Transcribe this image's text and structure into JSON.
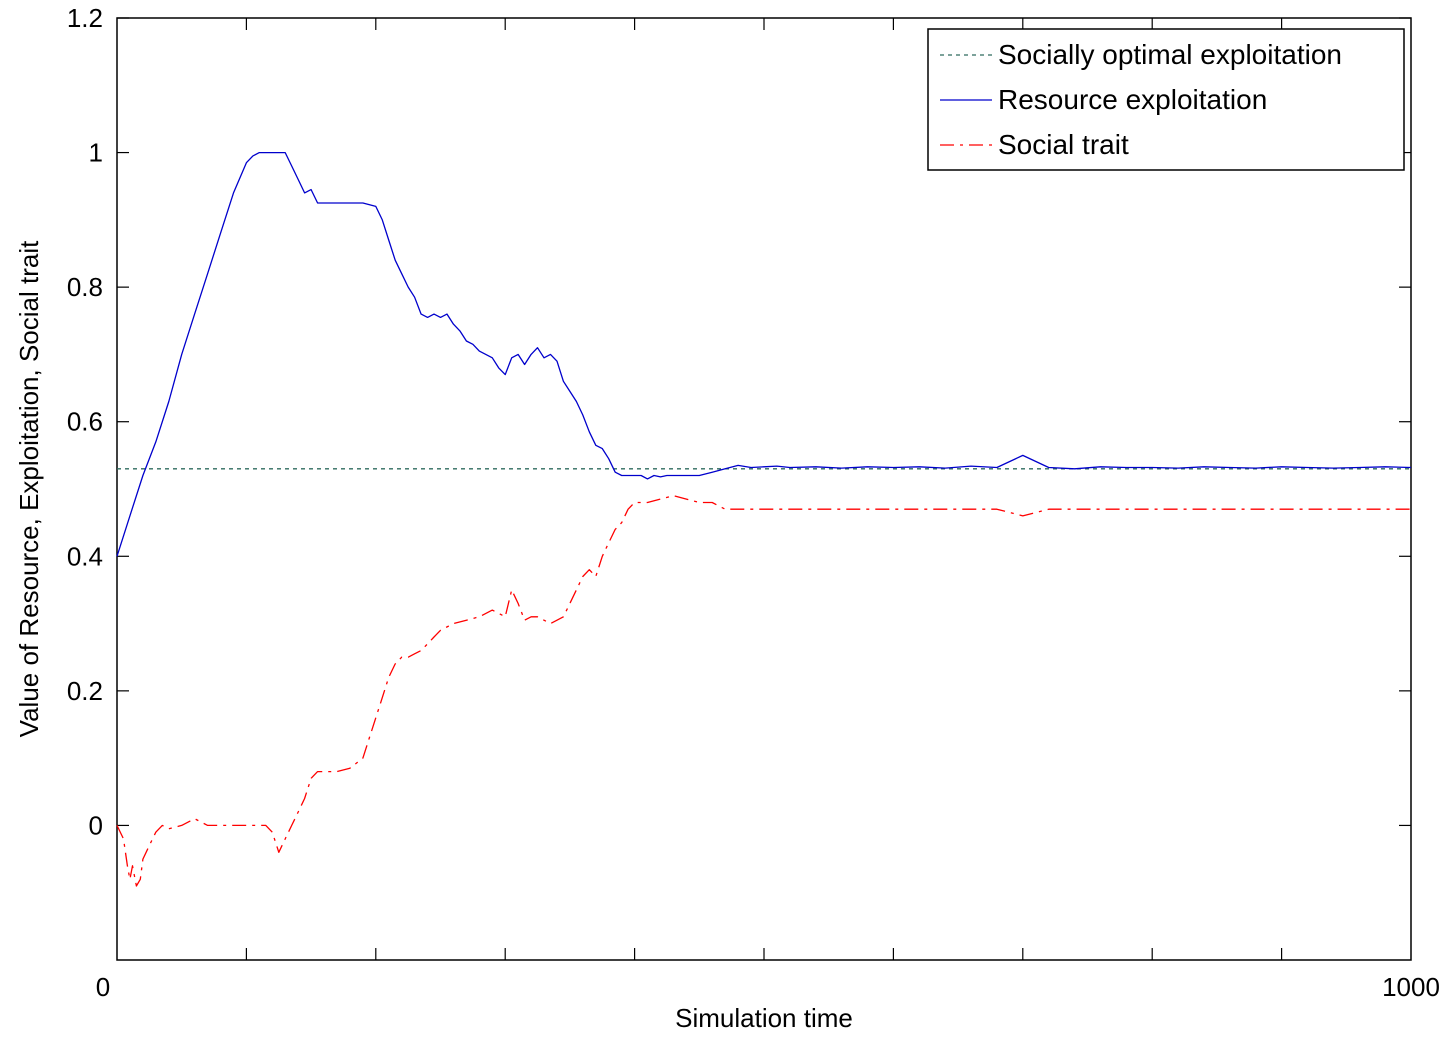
{
  "chart_data": {
    "type": "line",
    "title": "",
    "xlabel": "Simulation time",
    "ylabel": "Value of Resource, Exploitation, Social trait",
    "xlim": [
      0,
      1000
    ],
    "ylim": [
      -0.2,
      1.2
    ],
    "x_tick_labels": [
      "0",
      "1000"
    ],
    "y_tick_labels": [
      "0",
      "0.2",
      "0.4",
      "0.6",
      "0.8",
      "1",
      "1.2"
    ],
    "x_minor_ticks": [
      100,
      200,
      300,
      400,
      500,
      600,
      700,
      800,
      900
    ],
    "y_ticks": [
      0,
      0.2,
      0.4,
      0.6,
      0.8,
      1,
      1.2
    ],
    "grid": false,
    "legend_position": "top-right",
    "series": [
      {
        "name": "Socially optimal exploitation",
        "color": "#2e6b5e",
        "style": "dashed",
        "x": [
          0,
          1000
        ],
        "y": [
          0.53,
          0.53
        ]
      },
      {
        "name": "Resource exploitation",
        "color": "#0000cc",
        "style": "solid",
        "x": [
          0,
          10,
          20,
          30,
          40,
          50,
          60,
          70,
          80,
          90,
          100,
          105,
          110,
          115,
          120,
          125,
          130,
          135,
          140,
          145,
          150,
          155,
          160,
          165,
          170,
          180,
          190,
          200,
          205,
          210,
          215,
          220,
          225,
          230,
          235,
          240,
          245,
          250,
          255,
          260,
          265,
          270,
          275,
          280,
          285,
          290,
          295,
          300,
          305,
          310,
          315,
          320,
          325,
          330,
          335,
          340,
          345,
          350,
          355,
          360,
          365,
          370,
          375,
          380,
          385,
          390,
          395,
          400,
          405,
          410,
          415,
          420,
          425,
          430,
          440,
          450,
          460,
          470,
          480,
          490,
          500,
          510,
          520,
          540,
          560,
          580,
          600,
          620,
          640,
          660,
          680,
          700,
          720,
          740,
          760,
          780,
          800,
          820,
          840,
          860,
          880,
          900,
          920,
          940,
          960,
          980,
          1000
        ],
        "y": [
          0.4,
          0.46,
          0.52,
          0.57,
          0.63,
          0.7,
          0.76,
          0.82,
          0.88,
          0.94,
          0.985,
          0.995,
          1.0,
          1.0,
          1.0,
          1.0,
          1.0,
          0.98,
          0.96,
          0.94,
          0.945,
          0.925,
          0.925,
          0.925,
          0.925,
          0.925,
          0.925,
          0.92,
          0.9,
          0.87,
          0.84,
          0.82,
          0.8,
          0.785,
          0.76,
          0.755,
          0.76,
          0.755,
          0.76,
          0.745,
          0.735,
          0.72,
          0.715,
          0.705,
          0.7,
          0.695,
          0.68,
          0.67,
          0.695,
          0.7,
          0.685,
          0.7,
          0.71,
          0.695,
          0.7,
          0.69,
          0.66,
          0.645,
          0.63,
          0.61,
          0.585,
          0.565,
          0.56,
          0.545,
          0.525,
          0.52,
          0.52,
          0.52,
          0.52,
          0.515,
          0.52,
          0.518,
          0.52,
          0.52,
          0.52,
          0.52,
          0.525,
          0.53,
          0.535,
          0.532,
          0.533,
          0.534,
          0.532,
          0.533,
          0.531,
          0.533,
          0.532,
          0.533,
          0.531,
          0.534,
          0.532,
          0.55,
          0.532,
          0.53,
          0.533,
          0.532,
          0.532,
          0.531,
          0.533,
          0.532,
          0.531,
          0.533,
          0.532,
          0.531,
          0.532,
          0.533,
          0.532
        ]
      },
      {
        "name": "Social trait",
        "color": "#ff0000",
        "style": "dashdot",
        "x": [
          0,
          5,
          8,
          10,
          12,
          15,
          18,
          20,
          25,
          30,
          35,
          40,
          50,
          60,
          70,
          80,
          90,
          100,
          105,
          110,
          115,
          120,
          125,
          130,
          135,
          140,
          145,
          150,
          155,
          160,
          170,
          180,
          190,
          195,
          200,
          205,
          210,
          215,
          220,
          225,
          230,
          235,
          240,
          245,
          250,
          260,
          270,
          280,
          290,
          300,
          305,
          310,
          315,
          320,
          325,
          330,
          335,
          340,
          345,
          350,
          355,
          360,
          365,
          370,
          375,
          380,
          385,
          390,
          395,
          400,
          410,
          420,
          430,
          440,
          450,
          460,
          470,
          480,
          490,
          500,
          510,
          520,
          540,
          560,
          580,
          600,
          620,
          640,
          660,
          680,
          700,
          720,
          740,
          760,
          780,
          800,
          820,
          840,
          860,
          880,
          900,
          920,
          940,
          960,
          980,
          1000
        ],
        "y": [
          0.0,
          -0.02,
          -0.06,
          -0.08,
          -0.06,
          -0.09,
          -0.08,
          -0.05,
          -0.03,
          -0.01,
          0.0,
          -0.005,
          0.0,
          0.01,
          0.0,
          0.0,
          0.0,
          0.0,
          0.0,
          0.0,
          0.0,
          -0.01,
          -0.04,
          -0.02,
          0.0,
          0.02,
          0.04,
          0.07,
          0.08,
          0.08,
          0.08,
          0.085,
          0.1,
          0.13,
          0.16,
          0.19,
          0.22,
          0.24,
          0.25,
          0.25,
          0.255,
          0.26,
          0.27,
          0.28,
          0.29,
          0.3,
          0.305,
          0.31,
          0.32,
          0.31,
          0.35,
          0.33,
          0.305,
          0.31,
          0.31,
          0.305,
          0.3,
          0.305,
          0.31,
          0.33,
          0.35,
          0.37,
          0.38,
          0.37,
          0.4,
          0.42,
          0.44,
          0.45,
          0.47,
          0.48,
          0.48,
          0.485,
          0.49,
          0.485,
          0.48,
          0.48,
          0.47,
          0.47,
          0.47,
          0.47,
          0.47,
          0.47,
          0.47,
          0.47,
          0.47,
          0.47,
          0.47,
          0.47,
          0.47,
          0.47,
          0.46,
          0.47,
          0.47,
          0.47,
          0.47,
          0.47,
          0.47,
          0.47,
          0.47,
          0.47,
          0.47,
          0.47,
          0.47,
          0.47,
          0.47,
          0.47
        ]
      }
    ]
  }
}
